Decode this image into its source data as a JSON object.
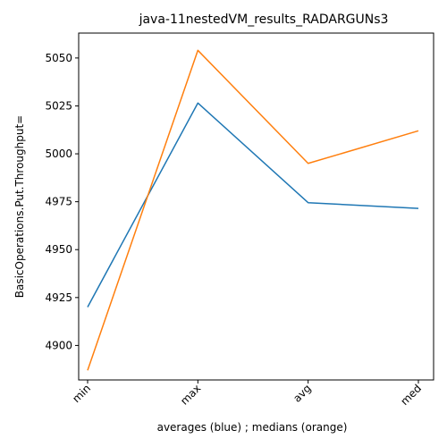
{
  "chart_data": {
    "type": "line",
    "title": "java-11nestedVM_results_RADARGUNs3",
    "xlabel": "averages (blue) ; medians (orange)",
    "ylabel": "BasicOperations.Put.Throughput=",
    "categories": [
      "min",
      "max",
      "avg",
      "med"
    ],
    "series": [
      {
        "values": [
          4920,
          5026.5,
          4974.5,
          4971.5
        ],
        "color": "#1f77b4"
      },
      {
        "values": [
          4887,
          5054,
          4995,
          5012
        ],
        "color": "#ff7f0e"
      }
    ],
    "ylim": [
      4882,
      5063
    ],
    "yticks": [
      4900,
      4925,
      4950,
      4975,
      5000,
      5025,
      5050
    ],
    "grid": false,
    "legend": "none"
  }
}
